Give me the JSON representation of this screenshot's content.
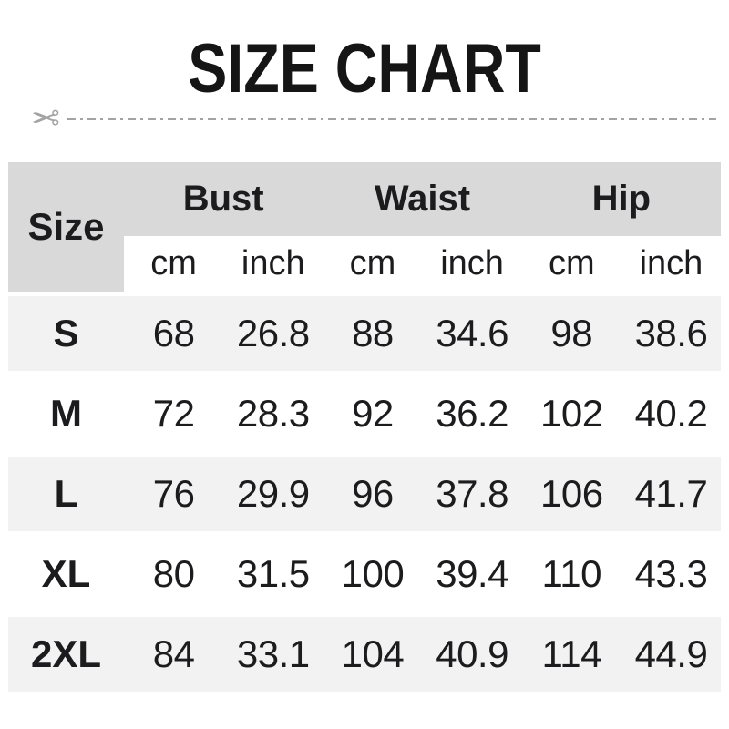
{
  "title": "SIZE CHART",
  "cut_line": {
    "scissors_icon": "✂"
  },
  "colors": {
    "header_bg": "#d9d9d9",
    "row_alt_bg": "#f2f2f2",
    "row_bg": "#ffffff",
    "text": "#1c1c1e",
    "line": "#a3a3a3",
    "page_bg": "#ffffff"
  },
  "table": {
    "size_header": "Size",
    "groups": [
      {
        "label": "Bust"
      },
      {
        "label": "Waist"
      },
      {
        "label": "Hip"
      }
    ],
    "units": [
      "cm",
      "inch",
      "cm",
      "inch",
      "cm",
      "inch"
    ],
    "rows": [
      {
        "size": "S",
        "values": [
          "68",
          "26.8",
          "88",
          "34.6",
          "98",
          "38.6"
        ]
      },
      {
        "size": "M",
        "values": [
          "72",
          "28.3",
          "92",
          "36.2",
          "102",
          "40.2"
        ]
      },
      {
        "size": "L",
        "values": [
          "76",
          "29.9",
          "96",
          "37.8",
          "106",
          "41.7"
        ]
      },
      {
        "size": "XL",
        "values": [
          "80",
          "31.5",
          "100",
          "39.4",
          "110",
          "43.3"
        ]
      },
      {
        "size": "2XL",
        "values": [
          "84",
          "33.1",
          "104",
          "40.9",
          "114",
          "44.9"
        ]
      }
    ]
  },
  "chart_data": {
    "type": "table",
    "title": "SIZE CHART",
    "columns": [
      "Size",
      "Bust cm",
      "Bust inch",
      "Waist cm",
      "Waist inch",
      "Hip cm",
      "Hip inch"
    ],
    "rows": [
      [
        "S",
        68,
        26.8,
        88,
        34.6,
        98,
        38.6
      ],
      [
        "M",
        72,
        28.3,
        92,
        36.2,
        102,
        40.2
      ],
      [
        "L",
        76,
        29.9,
        96,
        37.8,
        106,
        41.7
      ],
      [
        "XL",
        80,
        31.5,
        100,
        39.4,
        110,
        43.3
      ],
      [
        "2XL",
        84,
        33.1,
        104,
        40.9,
        114,
        44.9
      ]
    ]
  }
}
